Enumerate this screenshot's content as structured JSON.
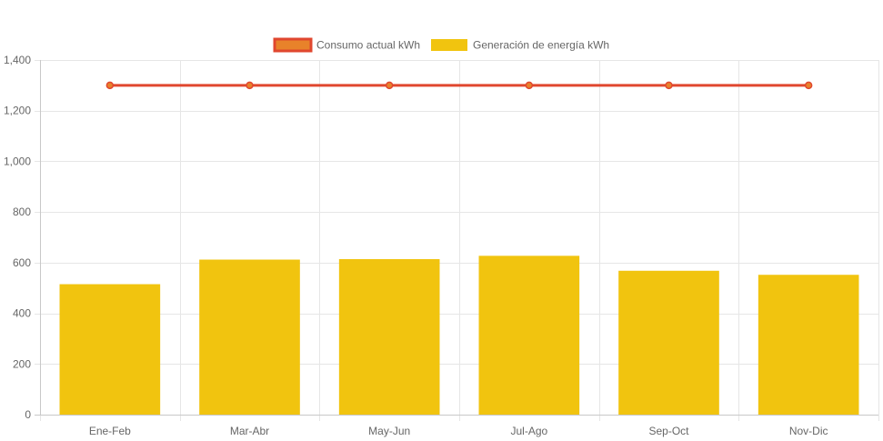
{
  "chart_data": {
    "type": "bar",
    "categories": [
      "Ene-Feb",
      "Mar-Abr",
      "May-Jun",
      "Jul-Ago",
      "Sep-Oct",
      "Nov-Dic"
    ],
    "series": [
      {
        "name": "Consumo actual kWh",
        "type": "line",
        "values": [
          1300,
          1300,
          1300,
          1300,
          1300,
          1300
        ],
        "color": "#e0472f",
        "fill_color": "#e8822a"
      },
      {
        "name": "Generación de energía kWh",
        "type": "bar",
        "values": [
          515,
          612,
          614,
          627,
          568,
          552
        ],
        "color": "#f1c40f"
      }
    ],
    "ylim": [
      0,
      1400
    ],
    "y_ticks": [
      "0",
      "200",
      "400",
      "600",
      "800",
      "1,000",
      "1,200",
      "1,400"
    ],
    "y_tick_values": [
      0,
      200,
      400,
      600,
      800,
      1000,
      1200,
      1400
    ],
    "grid": true,
    "legend_position": "top"
  }
}
